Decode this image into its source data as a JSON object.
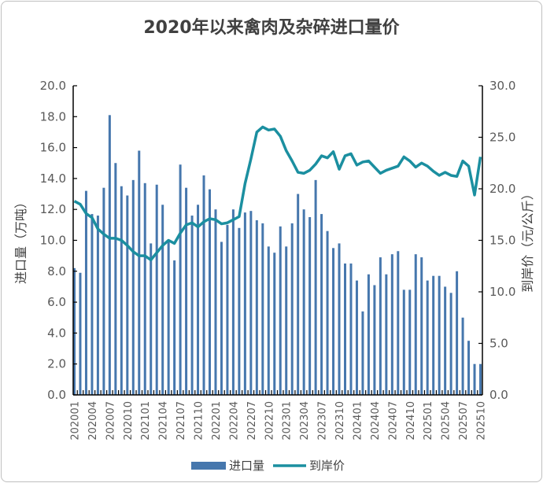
{
  "chart_data": {
    "type": "bar+line",
    "title": "2020年以来禽肉及杂碎进口量价",
    "ylabel_left": "进口量（万吨）",
    "ylabel_right": "到岸价（元/公斤）",
    "ylim_left": [
      0,
      20
    ],
    "ylim_right": [
      0,
      30
    ],
    "yticks_left": [
      "0.0",
      "2.0",
      "4.0",
      "6.0",
      "8.0",
      "10.0",
      "12.0",
      "14.0",
      "16.0",
      "18.0",
      "20.0"
    ],
    "yticks_right": [
      "0.0",
      "5.0",
      "10.0",
      "15.0",
      "20.0",
      "25.0",
      "30.0"
    ],
    "x": [
      "202001",
      "202002",
      "202003",
      "202004",
      "202005",
      "202006",
      "202007",
      "202008",
      "202009",
      "202010",
      "202011",
      "202012",
      "202101",
      "202102",
      "202103",
      "202104",
      "202105",
      "202106",
      "202107",
      "202108",
      "202109",
      "202110",
      "202111",
      "202112",
      "202201",
      "202202",
      "202203",
      "202204",
      "202205",
      "202206",
      "202207",
      "202208",
      "202209",
      "202210",
      "202211",
      "202212",
      "202301",
      "202302",
      "202303",
      "202304",
      "202305",
      "202306",
      "202307",
      "202308",
      "202309",
      "202310",
      "202311",
      "202312",
      "202401",
      "202402",
      "202403",
      "202404",
      "202405",
      "202406",
      "202407",
      "202408",
      "202409",
      "202410",
      "202411",
      "202412",
      "202501",
      "202502",
      "202503",
      "202504",
      "202505",
      "202506",
      "202507",
      "202508",
      "202509",
      "202510"
    ],
    "xtick_labels": [
      "202001",
      "202004",
      "202007",
      "202010",
      "202101",
      "202104",
      "202107",
      "202110",
      "202201",
      "202204",
      "202207",
      "202210",
      "202301",
      "202304",
      "202307",
      "202310",
      "202401",
      "202404",
      "202407",
      "202410",
      "202501",
      "202504",
      "202507",
      "202510"
    ],
    "series": [
      {
        "name": "进口量",
        "type": "bar",
        "axis": "left",
        "color": "#4677ad",
        "values": [
          8.2,
          7.9,
          13.2,
          11.7,
          11.6,
          13.4,
          18.1,
          15.0,
          13.5,
          12.9,
          13.9,
          15.8,
          13.7,
          9.8,
          13.6,
          12.3,
          10.0,
          8.7,
          14.9,
          13.4,
          11.6,
          12.3,
          14.2,
          13.3,
          12.0,
          9.9,
          11.0,
          12.0,
          10.8,
          11.8,
          11.9,
          11.3,
          11.1,
          9.6,
          9.2,
          10.9,
          9.6,
          11.1,
          13.0,
          12.0,
          11.5,
          13.9,
          11.7,
          10.6,
          9.5,
          9.8,
          8.5,
          8.5,
          7.4,
          5.4,
          7.8,
          7.1,
          8.9,
          7.8,
          9.1,
          9.3,
          6.8,
          6.8,
          9.1,
          8.9,
          7.4,
          7.7,
          7.7,
          7.0,
          6.6,
          8.0,
          5.0,
          3.5,
          2.0,
          2.0
        ]
      },
      {
        "name": "到岸价",
        "type": "line",
        "axis": "right",
        "color": "#1b8fa0",
        "values": [
          18.8,
          18.5,
          17.6,
          17.2,
          16.1,
          15.6,
          15.2,
          15.2,
          15.0,
          14.5,
          13.9,
          13.5,
          13.5,
          13.1,
          13.8,
          14.5,
          15.0,
          14.7,
          15.7,
          16.5,
          16.7,
          16.3,
          16.8,
          17.1,
          17.0,
          16.6,
          16.7,
          17.0,
          17.3,
          20.5,
          22.9,
          25.5,
          26.0,
          25.7,
          25.8,
          25.1,
          23.7,
          22.7,
          21.6,
          21.5,
          21.8,
          22.4,
          23.2,
          23.0,
          23.6,
          21.9,
          23.2,
          23.4,
          22.3,
          22.6,
          22.7,
          22.1,
          21.5,
          21.8,
          22.0,
          22.2,
          23.1,
          22.7,
          22.1,
          22.5,
          22.2,
          21.7,
          21.3,
          21.6,
          21.3,
          21.2,
          22.7,
          22.2,
          19.4,
          23.1
        ]
      }
    ],
    "legend": "bottom",
    "grid": false
  }
}
